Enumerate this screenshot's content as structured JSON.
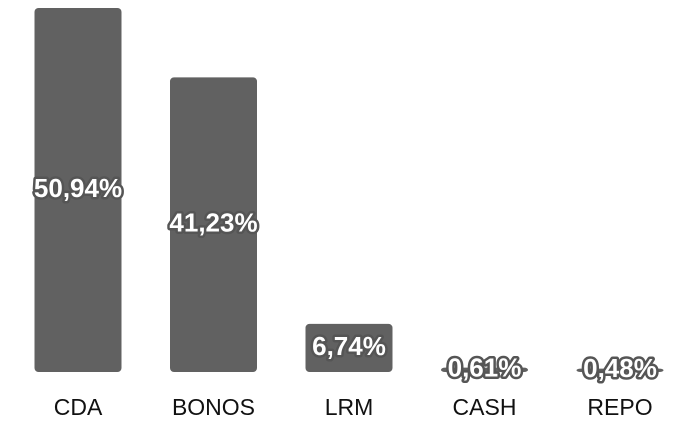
{
  "chart_data": {
    "type": "bar",
    "categories": [
      "CDA",
      "BONOS",
      "LRM",
      "CASH",
      "REPO"
    ],
    "values": [
      50.94,
      41.23,
      6.74,
      0.61,
      0.48
    ],
    "value_labels": [
      "50,94%",
      "41,23%",
      "6,74%",
      "0,61%",
      "0,48%"
    ],
    "color": "#616161"
  }
}
